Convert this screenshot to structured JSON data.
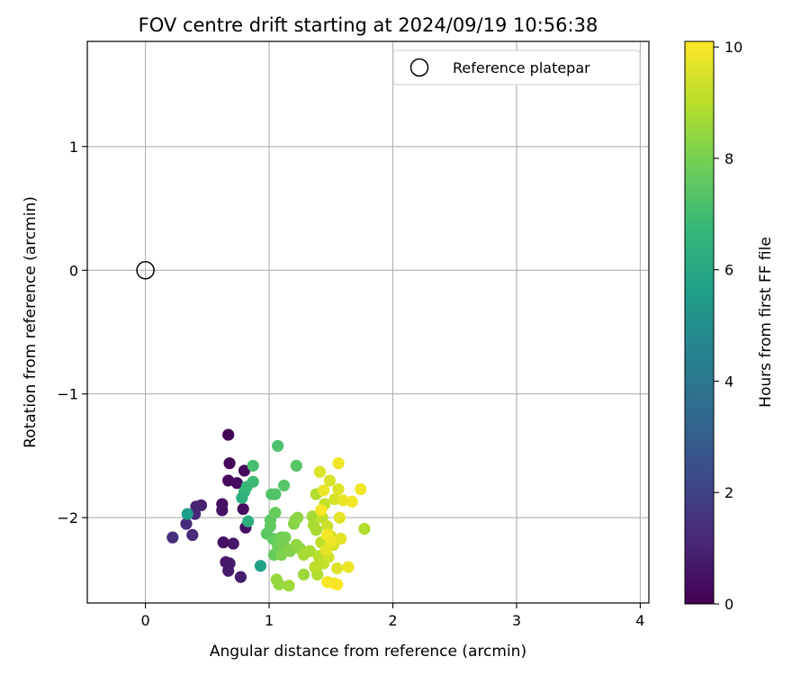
{
  "chart_data": {
    "type": "scatter",
    "title": "FOV centre drift starting at 2024/09/19 10:56:38",
    "xlabel": "Angular distance from reference (arcmin)",
    "ylabel": "Rotation from reference (arcmin)",
    "xlim": [
      -0.47,
      4.07
    ],
    "ylim": [
      -2.69,
      1.85
    ],
    "xticks": [
      0,
      1,
      2,
      3,
      4
    ],
    "xtick_labels": [
      "0",
      "1",
      "2",
      "3",
      "4"
    ],
    "yticks": [
      -2,
      -1,
      0,
      1
    ],
    "ytick_labels": [
      "−2",
      "−1",
      "0",
      "1"
    ],
    "grid": true,
    "legend": {
      "position": "top-right",
      "entries": [
        "Reference platepar"
      ]
    },
    "reference_point": {
      "x": 0,
      "y": 0
    },
    "colorbar": {
      "label": "Hours from first FF file",
      "colormap": "viridis",
      "range": [
        0,
        10.1
      ],
      "ticks": [
        0,
        2,
        4,
        6,
        8,
        10
      ],
      "tick_labels": [
        "0",
        "2",
        "4",
        "6",
        "8",
        "10"
      ],
      "stops": [
        "#440154",
        "#482878",
        "#3e4989",
        "#31688e",
        "#26828e",
        "#1f9e89",
        "#35b779",
        "#6ece58",
        "#b5de2b",
        "#fde725"
      ]
    },
    "points": [
      {
        "x": 0.67,
        "y": -1.33,
        "h": 0.1
      },
      {
        "x": 0.68,
        "y": -1.56,
        "h": 0.1
      },
      {
        "x": 0.8,
        "y": -1.62,
        "h": 0.2
      },
      {
        "x": 0.67,
        "y": -1.7,
        "h": 0.2
      },
      {
        "x": 0.74,
        "y": -1.72,
        "h": 0.3
      },
      {
        "x": 0.79,
        "y": -1.93,
        "h": 0.3
      },
      {
        "x": 0.81,
        "y": -2.08,
        "h": 0.4
      },
      {
        "x": 0.62,
        "y": -1.89,
        "h": 0.4
      },
      {
        "x": 0.62,
        "y": -1.94,
        "h": 0.5
      },
      {
        "x": 0.63,
        "y": -2.2,
        "h": 0.5
      },
      {
        "x": 0.71,
        "y": -2.21,
        "h": 0.6
      },
      {
        "x": 0.65,
        "y": -2.36,
        "h": 0.6
      },
      {
        "x": 0.68,
        "y": -2.37,
        "h": 0.7
      },
      {
        "x": 0.67,
        "y": -2.43,
        "h": 0.7
      },
      {
        "x": 0.77,
        "y": -2.48,
        "h": 0.8
      },
      {
        "x": 0.45,
        "y": -1.9,
        "h": 0.9
      },
      {
        "x": 0.41,
        "y": -1.91,
        "h": 1.0
      },
      {
        "x": 0.4,
        "y": -1.97,
        "h": 1.1
      },
      {
        "x": 0.38,
        "y": -2.14,
        "h": 1.2
      },
      {
        "x": 0.33,
        "y": -2.05,
        "h": 1.3
      },
      {
        "x": 0.22,
        "y": -2.16,
        "h": 1.4
      },
      {
        "x": 0.34,
        "y": -1.97,
        "h": 5.6
      },
      {
        "x": 0.93,
        "y": -2.39,
        "h": 5.7
      },
      {
        "x": 0.83,
        "y": -2.03,
        "h": 6.3
      },
      {
        "x": 0.78,
        "y": -1.84,
        "h": 6.4
      },
      {
        "x": 0.8,
        "y": -1.79,
        "h": 6.6
      },
      {
        "x": 0.82,
        "y": -1.75,
        "h": 6.8
      },
      {
        "x": 0.87,
        "y": -1.71,
        "h": 6.9
      },
      {
        "x": 0.87,
        "y": -1.58,
        "h": 7.1
      },
      {
        "x": 1.07,
        "y": -1.42,
        "h": 7.2
      },
      {
        "x": 1.02,
        "y": -1.81,
        "h": 7.3
      },
      {
        "x": 1.05,
        "y": -1.81,
        "h": 7.3
      },
      {
        "x": 1.12,
        "y": -1.74,
        "h": 7.4
      },
      {
        "x": 1.22,
        "y": -1.58,
        "h": 7.4
      },
      {
        "x": 0.98,
        "y": -2.13,
        "h": 7.5
      },
      {
        "x": 1.01,
        "y": -2.02,
        "h": 7.5
      },
      {
        "x": 1.01,
        "y": -2.07,
        "h": 7.6
      },
      {
        "x": 1.03,
        "y": -2.17,
        "h": 7.6
      },
      {
        "x": 1.05,
        "y": -1.96,
        "h": 7.7
      },
      {
        "x": 1.04,
        "y": -2.3,
        "h": 7.7
      },
      {
        "x": 1.07,
        "y": -2.23,
        "h": 7.8
      },
      {
        "x": 1.08,
        "y": -2.17,
        "h": 7.8
      },
      {
        "x": 1.1,
        "y": -2.16,
        "h": 7.9
      },
      {
        "x": 1.11,
        "y": -2.21,
        "h": 7.9
      },
      {
        "x": 1.13,
        "y": -2.16,
        "h": 8.0
      },
      {
        "x": 1.12,
        "y": -2.23,
        "h": 8.0
      },
      {
        "x": 1.1,
        "y": -2.3,
        "h": 8.1
      },
      {
        "x": 1.15,
        "y": -2.26,
        "h": 8.1
      },
      {
        "x": 1.17,
        "y": -2.27,
        "h": 8.2
      },
      {
        "x": 1.2,
        "y": -2.05,
        "h": 8.2
      },
      {
        "x": 1.21,
        "y": -2.02,
        "h": 8.3
      },
      {
        "x": 1.23,
        "y": -2.0,
        "h": 8.3
      },
      {
        "x": 1.22,
        "y": -2.22,
        "h": 8.4
      },
      {
        "x": 1.25,
        "y": -2.25,
        "h": 8.4
      },
      {
        "x": 1.06,
        "y": -2.5,
        "h": 8.5
      },
      {
        "x": 1.08,
        "y": -2.54,
        "h": 8.5
      },
      {
        "x": 1.16,
        "y": -2.55,
        "h": 8.6
      },
      {
        "x": 1.28,
        "y": -2.46,
        "h": 8.6
      },
      {
        "x": 1.28,
        "y": -2.3,
        "h": 8.7
      },
      {
        "x": 1.35,
        "y": -1.99,
        "h": 8.7
      },
      {
        "x": 1.36,
        "y": -2.06,
        "h": 8.8
      },
      {
        "x": 1.38,
        "y": -2.1,
        "h": 8.8
      },
      {
        "x": 1.38,
        "y": -1.81,
        "h": 8.9
      },
      {
        "x": 1.39,
        "y": -2.46,
        "h": 8.9
      },
      {
        "x": 1.4,
        "y": -2.31,
        "h": 9.0
      },
      {
        "x": 1.4,
        "y": -2.38,
        "h": 9.0
      },
      {
        "x": 1.42,
        "y": -2.2,
        "h": 9.1
      },
      {
        "x": 1.43,
        "y": -2.0,
        "h": 9.1
      },
      {
        "x": 1.44,
        "y": -2.37,
        "h": 9.2
      },
      {
        "x": 1.45,
        "y": -1.89,
        "h": 9.2
      },
      {
        "x": 1.46,
        "y": -2.28,
        "h": 9.3
      },
      {
        "x": 1.47,
        "y": -2.07,
        "h": 9.3
      },
      {
        "x": 1.48,
        "y": -2.32,
        "h": 9.4
      },
      {
        "x": 1.5,
        "y": -2.15,
        "h": 9.4
      },
      {
        "x": 1.52,
        "y": -2.22,
        "h": 9.5
      },
      {
        "x": 1.53,
        "y": -1.85,
        "h": 9.5
      },
      {
        "x": 1.55,
        "y": -2.41,
        "h": 9.6
      },
      {
        "x": 1.56,
        "y": -1.77,
        "h": 9.6
      },
      {
        "x": 1.57,
        "y": -2.0,
        "h": 9.7
      },
      {
        "x": 1.58,
        "y": -2.17,
        "h": 9.7
      },
      {
        "x": 1.6,
        "y": -1.86,
        "h": 9.8
      },
      {
        "x": 1.64,
        "y": -2.4,
        "h": 9.8
      },
      {
        "x": 1.67,
        "y": -1.87,
        "h": 9.9
      },
      {
        "x": 1.74,
        "y": -1.77,
        "h": 9.9
      },
      {
        "x": 1.77,
        "y": -2.09,
        "h": 8.9
      },
      {
        "x": 1.56,
        "y": -1.56,
        "h": 9.9
      },
      {
        "x": 1.41,
        "y": -1.63,
        "h": 9.6
      },
      {
        "x": 1.49,
        "y": -1.7,
        "h": 9.5
      },
      {
        "x": 1.44,
        "y": -1.78,
        "h": 9.8
      },
      {
        "x": 1.42,
        "y": -1.94,
        "h": 10.0
      },
      {
        "x": 1.47,
        "y": -2.14,
        "h": 10.0
      },
      {
        "x": 1.5,
        "y": -2.19,
        "h": 9.9
      },
      {
        "x": 1.47,
        "y": -2.52,
        "h": 10.0
      },
      {
        "x": 1.52,
        "y": -2.53,
        "h": 10.0
      },
      {
        "x": 1.55,
        "y": -2.54,
        "h": 10.0
      },
      {
        "x": 1.46,
        "y": -2.26,
        "h": 9.7
      },
      {
        "x": 1.37,
        "y": -2.4,
        "h": 9.1
      },
      {
        "x": 1.33,
        "y": -2.27,
        "h": 8.8
      }
    ]
  }
}
